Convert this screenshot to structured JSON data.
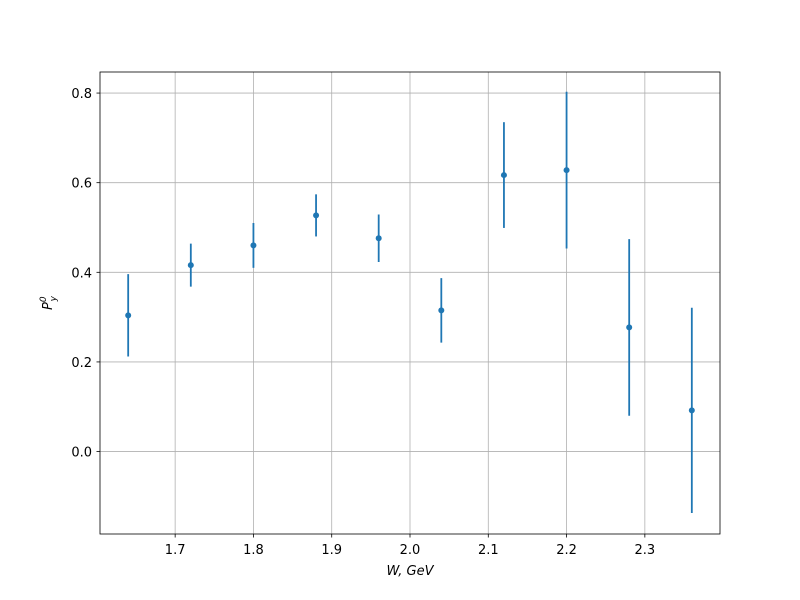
{
  "chart_data": {
    "type": "errorbar",
    "xlabel": "W, GeV",
    "ylabel": {
      "main": "P",
      "sub": "y",
      "sup": "0"
    },
    "x": [
      1.64,
      1.72,
      1.8,
      1.88,
      1.96,
      2.04,
      2.12,
      2.2,
      2.28,
      2.36
    ],
    "values": [
      0.304,
      0.416,
      0.46,
      0.527,
      0.476,
      0.315,
      0.617,
      0.628,
      0.277,
      0.092
    ],
    "errors": [
      0.092,
      0.048,
      0.05,
      0.047,
      0.053,
      0.072,
      0.118,
      0.175,
      0.197,
      0.229
    ],
    "color": "#1f77b4",
    "xlim": [
      1.604,
      2.396
    ],
    "xticks": [
      1.7,
      1.8,
      1.9,
      {
        "value": 2,
        "label": "2.0"
      },
      2.1,
      2.2,
      2.3
    ],
    "ylim": [
      -0.184,
      0.847
    ],
    "yticks": [
      {
        "value": 0,
        "label": "0.0"
      },
      0.2,
      0.4,
      0.6,
      0.8
    ],
    "grid": true
  }
}
